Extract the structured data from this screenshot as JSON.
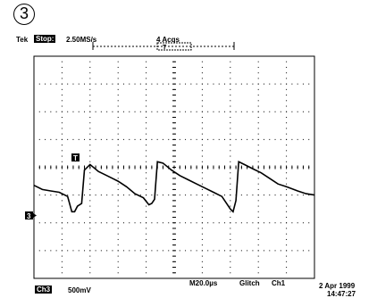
{
  "figure_label": "3",
  "header": {
    "brand": "Tek",
    "run_state": "Stop:",
    "sample_rate": "2.50MS/s",
    "acquisitions": "4 Acqs",
    "trigger_pos_marker": "T"
  },
  "screen": {
    "graticule_color": "#000000",
    "trigger_marker": "T",
    "ch3_marker": "3"
  },
  "footer": {
    "channel": "Ch3",
    "volts_per_div": "500mV",
    "timebase": "M20.0µs",
    "trigger_type": "Glitch",
    "trigger_source": "Ch1",
    "date": "2 Apr 1999",
    "time": "14:47:27"
  },
  "chart_data": {
    "type": "line",
    "title": "",
    "xlabel": "",
    "ylabel": "",
    "x_divisions": 10,
    "y_divisions": 8,
    "x": [
      0,
      0.3,
      0.6,
      0.9,
      1.2,
      1.35,
      1.45,
      1.55,
      1.7,
      1.8,
      2.0,
      2.3,
      2.6,
      3.0,
      3.3,
      3.6,
      3.9,
      4.1,
      4.2,
      4.3,
      4.4,
      4.6,
      4.9,
      5.2,
      5.5,
      5.8,
      6.1,
      6.4,
      6.7,
      7.0,
      7.1,
      7.2,
      7.3,
      7.5,
      7.8,
      8.1,
      8.4,
      8.7,
      9.0,
      9.4,
      9.7,
      10.0
    ],
    "y": [
      -0.65,
      -0.8,
      -0.85,
      -0.9,
      -1.05,
      -1.6,
      -1.6,
      -1.4,
      -1.3,
      -0.1,
      0.1,
      -0.15,
      -0.3,
      -0.5,
      -0.7,
      -0.95,
      -1.1,
      -1.35,
      -1.3,
      -1.15,
      0.2,
      0.15,
      -0.1,
      -0.3,
      -0.45,
      -0.6,
      -0.75,
      -0.9,
      -1.05,
      -1.5,
      -1.6,
      -1.2,
      0.2,
      0.1,
      -0.05,
      -0.2,
      -0.4,
      -0.6,
      -0.7,
      -0.85,
      -0.95,
      -1.0
    ]
  }
}
